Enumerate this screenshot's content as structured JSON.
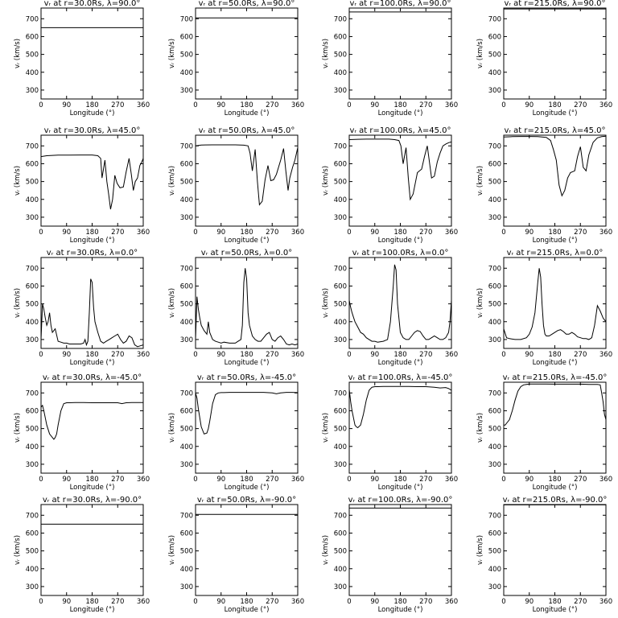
{
  "figure": {
    "xlabel": "Longitude (°)",
    "ylabel": "vᵣ (km/s)",
    "xticks": [
      0,
      90,
      180,
      270,
      360
    ],
    "yticks": [
      300,
      400,
      500,
      600,
      700
    ],
    "xlim": [
      0,
      360
    ],
    "ylim": [
      250,
      760
    ],
    "line_color": "#000000"
  },
  "chart_data": [
    {
      "type": "line",
      "title": "vᵣ at r=30.0Rs, λ=90.0°",
      "x": [
        0,
        360
      ],
      "y": [
        650,
        650
      ]
    },
    {
      "type": "line",
      "title": "vᵣ at r=50.0Rs, λ=90.0°",
      "x": [
        0,
        360
      ],
      "y": [
        705,
        705
      ]
    },
    {
      "type": "line",
      "title": "vᵣ at r=100.0Rs, λ=90.0°",
      "x": [
        0,
        360
      ],
      "y": [
        738,
        738
      ]
    },
    {
      "type": "line",
      "title": "vᵣ at r=215.0Rs, λ=90.0°",
      "x": [
        0,
        360
      ],
      "y": [
        755,
        755
      ]
    },
    {
      "type": "line",
      "title": "vᵣ at r=30.0Rs, λ=45.0°",
      "x": [
        0,
        20,
        60,
        100,
        140,
        180,
        200,
        210,
        215,
        225,
        232,
        238,
        245,
        252,
        260,
        268,
        278,
        290,
        300,
        310,
        318,
        325,
        332,
        340,
        348,
        355,
        360
      ],
      "y": [
        640,
        645,
        648,
        648,
        649,
        649,
        645,
        630,
        520,
        620,
        500,
        430,
        345,
        400,
        535,
        490,
        465,
        470,
        555,
        630,
        540,
        450,
        500,
        520,
        590,
        610,
        630
      ]
    },
    {
      "type": "line",
      "title": "vᵣ at r=50.0Rs, λ=45.0°",
      "x": [
        0,
        20,
        60,
        100,
        140,
        170,
        185,
        192,
        200,
        210,
        218,
        225,
        235,
        245,
        255,
        265,
        275,
        285,
        300,
        310,
        318,
        326,
        332,
        342,
        350,
        360
      ],
      "y": [
        700,
        705,
        706,
        706,
        706,
        704,
        700,
        660,
        560,
        680,
        500,
        370,
        390,
        510,
        590,
        505,
        510,
        540,
        620,
        685,
        560,
        450,
        520,
        580,
        620,
        690
      ]
    },
    {
      "type": "line",
      "title": "vᵣ at r=100.0Rs, λ=45.0°",
      "x": [
        0,
        30,
        60,
        100,
        140,
        160,
        175,
        182,
        190,
        200,
        208,
        215,
        225,
        240,
        255,
        265,
        275,
        290,
        300,
        310,
        320,
        330,
        340,
        350,
        360
      ],
      "y": [
        735,
        737,
        738,
        738,
        738,
        735,
        730,
        700,
        600,
        690,
        520,
        400,
        430,
        550,
        570,
        640,
        700,
        520,
        530,
        610,
        660,
        700,
        710,
        718,
        722
      ]
    },
    {
      "type": "line",
      "title": "vᵣ at r=215.0Rs, λ=45.0°",
      "x": [
        0,
        30,
        60,
        90,
        120,
        150,
        165,
        175,
        185,
        195,
        205,
        215,
        225,
        235,
        250,
        260,
        270,
        280,
        290,
        300,
        315,
        330,
        345,
        360
      ],
      "y": [
        750,
        752,
        753,
        753,
        752,
        748,
        730,
        680,
        620,
        480,
        420,
        450,
        520,
        550,
        560,
        640,
        695,
        580,
        560,
        650,
        720,
        745,
        752,
        754
      ]
    },
    {
      "type": "line",
      "title": "vᵣ at r=30.0Rs, λ=0.0°",
      "x": [
        0,
        5,
        10,
        15,
        20,
        25,
        30,
        35,
        40,
        45,
        50,
        60,
        70,
        80,
        90,
        100,
        120,
        140,
        150,
        155,
        160,
        165,
        170,
        175,
        180,
        185,
        190,
        200,
        210,
        220,
        230,
        240,
        250,
        260,
        270,
        280,
        290,
        300,
        310,
        320,
        330,
        340,
        350,
        360
      ],
      "y": [
        300,
        500,
        470,
        420,
        380,
        400,
        450,
        380,
        340,
        350,
        360,
        290,
        285,
        280,
        280,
        275,
        275,
        275,
        280,
        300,
        270,
        290,
        450,
        640,
        620,
        480,
        400,
        340,
        290,
        280,
        290,
        300,
        310,
        320,
        330,
        300,
        280,
        290,
        320,
        310,
        270,
        260,
        265,
        270
      ]
    },
    {
      "type": "line",
      "title": "vᵣ at r=50.0Rs, λ=0.0°",
      "x": [
        0,
        5,
        10,
        15,
        20,
        30,
        40,
        45,
        50,
        60,
        70,
        80,
        90,
        100,
        120,
        140,
        150,
        160,
        165,
        170,
        175,
        180,
        185,
        190,
        200,
        210,
        220,
        230,
        240,
        250,
        260,
        270,
        280,
        290,
        300,
        310,
        320,
        330,
        340,
        350,
        360
      ],
      "y": [
        300,
        540,
        470,
        420,
        380,
        350,
        330,
        400,
        340,
        300,
        290,
        285,
        280,
        285,
        280,
        280,
        290,
        300,
        380,
        620,
        700,
        640,
        450,
        380,
        320,
        300,
        290,
        290,
        310,
        330,
        340,
        300,
        290,
        310,
        320,
        300,
        275,
        270,
        275,
        270,
        275
      ]
    },
    {
      "type": "line",
      "title": "vᵣ at r=100.0Rs, λ=0.0°",
      "x": [
        0,
        5,
        10,
        20,
        30,
        40,
        50,
        60,
        70,
        80,
        90,
        100,
        120,
        135,
        145,
        155,
        160,
        165,
        170,
        180,
        190,
        200,
        210,
        220,
        230,
        240,
        250,
        260,
        270,
        280,
        290,
        300,
        310,
        320,
        330,
        340,
        350,
        355,
        360
      ],
      "y": [
        520,
        480,
        450,
        400,
        370,
        340,
        330,
        310,
        300,
        290,
        290,
        285,
        290,
        300,
        400,
        600,
        720,
        690,
        500,
        340,
        310,
        300,
        300,
        320,
        340,
        350,
        345,
        320,
        300,
        300,
        310,
        320,
        310,
        300,
        300,
        310,
        340,
        400,
        520
      ]
    },
    {
      "type": "line",
      "title": "vᵣ at r=215.0Rs, λ=0.0°",
      "x": [
        0,
        10,
        20,
        40,
        60,
        80,
        90,
        100,
        110,
        120,
        125,
        130,
        135,
        140,
        145,
        150,
        160,
        170,
        180,
        190,
        200,
        210,
        220,
        230,
        240,
        250,
        260,
        270,
        280,
        290,
        300,
        310,
        320,
        330,
        340,
        350,
        360
      ],
      "y": [
        360,
        310,
        305,
        300,
        300,
        310,
        330,
        370,
        450,
        620,
        700,
        650,
        500,
        380,
        330,
        320,
        320,
        330,
        340,
        350,
        355,
        345,
        330,
        330,
        340,
        330,
        315,
        310,
        305,
        305,
        300,
        310,
        380,
        490,
        460,
        420,
        400
      ]
    },
    {
      "type": "line",
      "title": "vᵣ at r=30.0Rs, λ=-45.0°",
      "x": [
        0,
        5,
        10,
        15,
        20,
        30,
        40,
        45,
        50,
        55,
        60,
        70,
        80,
        90,
        100,
        120,
        150,
        180,
        210,
        240,
        270,
        285,
        300,
        320,
        340,
        360
      ],
      "y": [
        620,
        630,
        600,
        560,
        520,
        470,
        450,
        440,
        450,
        470,
        520,
        600,
        640,
        645,
        645,
        646,
        646,
        645,
        645,
        645,
        645,
        640,
        645,
        646,
        646,
        646
      ]
    },
    {
      "type": "line",
      "title": "vᵣ at r=50.0Rs, λ=-45.0°",
      "x": [
        0,
        5,
        10,
        15,
        20,
        30,
        40,
        45,
        50,
        55,
        60,
        70,
        80,
        90,
        100,
        120,
        150,
        180,
        210,
        240,
        270,
        285,
        300,
        320,
        340,
        360
      ],
      "y": [
        700,
        670,
        610,
        560,
        510,
        470,
        475,
        500,
        540,
        590,
        640,
        690,
        700,
        702,
        702,
        703,
        703,
        703,
        703,
        703,
        700,
        695,
        700,
        703,
        703,
        702
      ]
    },
    {
      "type": "line",
      "title": "vᵣ at r=100.0Rs, λ=-45.0°",
      "x": [
        0,
        5,
        10,
        15,
        20,
        25,
        30,
        40,
        50,
        60,
        70,
        80,
        90,
        100,
        120,
        150,
        180,
        210,
        240,
        270,
        300,
        320,
        340,
        350,
        360
      ],
      "y": [
        720,
        650,
        600,
        560,
        520,
        510,
        505,
        520,
        580,
        660,
        715,
        732,
        735,
        735,
        736,
        736,
        736,
        736,
        735,
        735,
        732,
        728,
        730,
        725,
        715
      ]
    },
    {
      "type": "line",
      "title": "vᵣ at r=215.0Rs, λ=-45.0°",
      "x": [
        0,
        5,
        10,
        20,
        30,
        40,
        50,
        60,
        70,
        80,
        90,
        120,
        150,
        180,
        210,
        240,
        270,
        300,
        330,
        340,
        345,
        350,
        355,
        360
      ],
      "y": [
        520,
        520,
        530,
        550,
        600,
        660,
        710,
        735,
        745,
        748,
        750,
        750,
        750,
        749,
        749,
        749,
        749,
        748,
        748,
        745,
        700,
        650,
        580,
        550
      ]
    },
    {
      "type": "line",
      "title": "vᵣ at r=30.0Rs, λ=-90.0°",
      "x": [
        0,
        360
      ],
      "y": [
        650,
        650
      ]
    },
    {
      "type": "line",
      "title": "vᵣ at r=50.0Rs, λ=-90.0°",
      "x": [
        0,
        360
      ],
      "y": [
        705,
        705
      ]
    },
    {
      "type": "line",
      "title": "vᵣ at r=100.0Rs, λ=-90.0°",
      "x": [
        0,
        360
      ],
      "y": [
        740,
        740
      ]
    },
    {
      "type": "line",
      "title": "vᵣ at r=215.0Rs, λ=-90.0°",
      "x": [
        0,
        360
      ],
      "y": [
        758,
        758
      ]
    }
  ]
}
